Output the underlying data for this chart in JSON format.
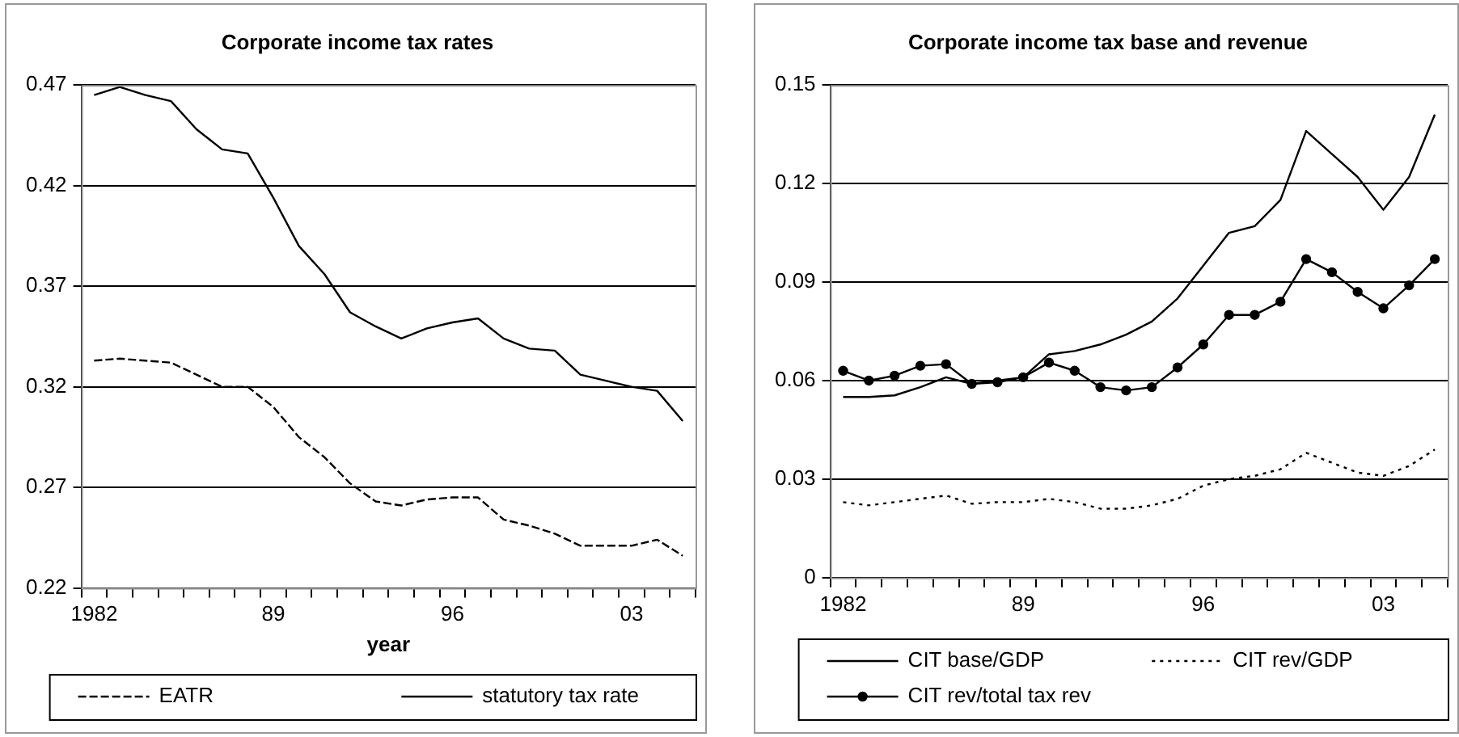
{
  "chart_data": [
    {
      "type": "line",
      "title": "Corporate income tax rates",
      "xlabel": "year",
      "categories": [
        "1982",
        null,
        null,
        null,
        null,
        null,
        null,
        "89",
        null,
        null,
        null,
        null,
        null,
        null,
        "96",
        null,
        null,
        null,
        null,
        null,
        null,
        "03",
        null,
        null
      ],
      "series": [
        {
          "name": "EATR",
          "color": "#000000",
          "line_style": "dashed",
          "marker": "none",
          "values": [
            0.333,
            0.334,
            0.333,
            0.332,
            0.326,
            0.32,
            0.32,
            0.31,
            0.295,
            0.285,
            0.272,
            0.263,
            0.261,
            0.264,
            0.265,
            0.265,
            0.254,
            0.251,
            0.247,
            0.241,
            0.241,
            0.241,
            0.244,
            0.236
          ]
        },
        {
          "name": "statutory tax rate",
          "color": "#000000",
          "line_style": "solid",
          "marker": "none",
          "values": [
            0.465,
            0.469,
            0.465,
            0.462,
            0.448,
            0.438,
            0.436,
            0.414,
            0.39,
            0.376,
            0.357,
            0.35,
            0.344,
            0.349,
            0.352,
            0.354,
            0.344,
            0.339,
            0.338,
            0.326,
            0.323,
            0.32,
            0.318,
            0.303
          ]
        }
      ],
      "ylim": [
        0.22,
        0.47
      ],
      "yticks": [
        0.22,
        0.27,
        0.32,
        0.37,
        0.42,
        0.47
      ],
      "grid": "y",
      "legend": "bottom"
    },
    {
      "type": "line",
      "title": "Corporate income tax base and revenue",
      "categories": [
        "1982",
        null,
        null,
        null,
        null,
        null,
        null,
        "89",
        null,
        null,
        null,
        null,
        null,
        null,
        "96",
        null,
        null,
        null,
        null,
        null,
        null,
        "03",
        null,
        null
      ],
      "series": [
        {
          "name": "CIT base/GDP",
          "color": "#000000",
          "line_style": "solid",
          "marker": "none",
          "values": [
            0.055,
            0.055,
            0.0555,
            0.058,
            0.061,
            0.059,
            0.06,
            0.061,
            0.068,
            0.069,
            0.071,
            0.074,
            0.078,
            0.085,
            0.095,
            0.105,
            0.107,
            0.115,
            0.136,
            0.129,
            0.122,
            0.112,
            0.122,
            0.141
          ]
        },
        {
          "name": "CIT rev/GDP",
          "color": "#000000",
          "line_style": "dotted",
          "marker": "none",
          "values": [
            0.023,
            0.022,
            0.023,
            0.024,
            0.025,
            0.0225,
            0.023,
            0.023,
            0.024,
            0.023,
            0.021,
            0.021,
            0.022,
            0.024,
            0.028,
            0.03,
            0.031,
            0.033,
            0.038,
            0.035,
            0.032,
            0.031,
            0.034,
            0.039
          ]
        },
        {
          "name": "CIT rev/total tax rev",
          "color": "#000000",
          "line_style": "solid",
          "marker": "circle",
          "values": [
            0.063,
            0.06,
            0.0615,
            0.0645,
            0.065,
            0.059,
            0.0595,
            0.061,
            0.0655,
            0.063,
            0.058,
            0.057,
            0.058,
            0.064,
            0.071,
            0.08,
            0.08,
            0.084,
            0.097,
            0.093,
            0.087,
            0.082,
            0.089,
            0.097
          ]
        }
      ],
      "ylim": [
        0,
        0.15
      ],
      "yticks": [
        0,
        0.03,
        0.06,
        0.09,
        0.12,
        0.15
      ],
      "grid": "y",
      "legend": "bottom"
    }
  ]
}
